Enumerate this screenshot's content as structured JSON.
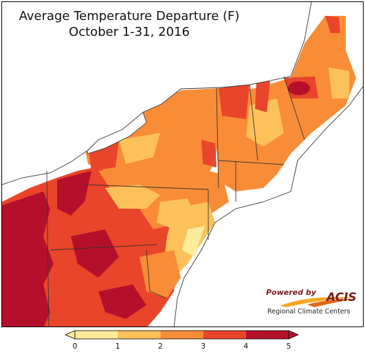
{
  "title": {
    "line1": "Average Temperature Departure (F)",
    "line2": "October 1-31, 2016"
  },
  "legend": {
    "ticks": [
      "0",
      "1",
      "2",
      "3",
      "4",
      "5"
    ],
    "colors": [
      "#ffeb9c",
      "#fdc15a",
      "#f98c37",
      "#e9452a",
      "#b5102b"
    ],
    "extends": "both"
  },
  "map": {
    "region": "Northeast United States",
    "colors": {
      "water": "#ffffff",
      "land_outside": "#ffffff",
      "borders": "#333333"
    }
  },
  "logo": {
    "powered_by": "Powered by",
    "name": "ACIS",
    "subtitle": "Regional Climate Centers"
  }
}
